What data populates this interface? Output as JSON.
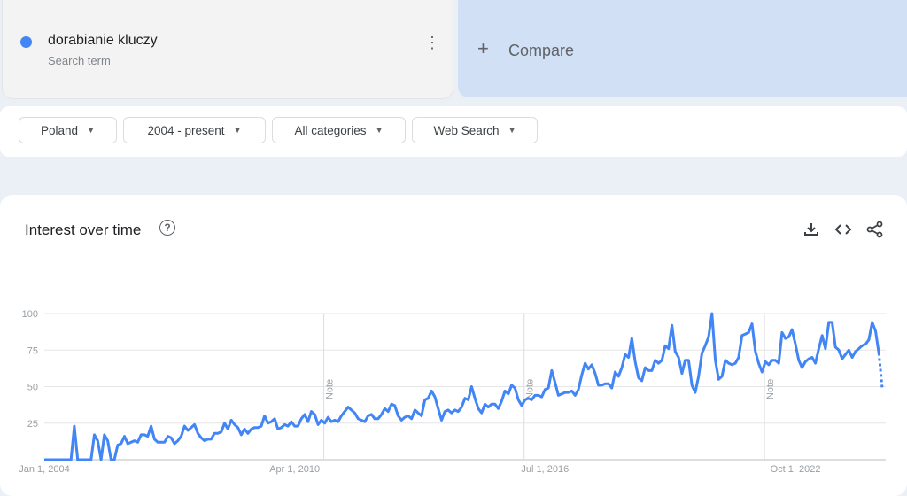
{
  "search_term": {
    "label": "dorabianie kluczy",
    "sub": "Search term",
    "color": "#4285f4"
  },
  "compare": {
    "label": "Compare"
  },
  "filters": [
    {
      "label": "Poland"
    },
    {
      "label": "2004 - present"
    },
    {
      "label": "All categories"
    },
    {
      "label": "Web Search"
    }
  ],
  "panel": {
    "title": "Interest over time",
    "help": "?",
    "icons": [
      "download-icon",
      "embed-code-icon",
      "share-icon"
    ]
  },
  "chart_data": {
    "type": "line",
    "title": "Interest over time",
    "series_color": "#4285f4",
    "ylim": [
      0,
      100
    ],
    "y_ticks": [
      "100",
      "75",
      "50",
      "25"
    ],
    "x_ticks": [
      "Jan 1, 2004",
      "Apr 1, 2010",
      "Jul 1, 2016",
      "Oct 1, 2022"
    ],
    "notes": [
      {
        "label": "Note",
        "date": "2011-01"
      },
      {
        "label": "Note",
        "date": "2016-01"
      },
      {
        "label": "Note",
        "date": "2022-01"
      }
    ],
    "grid": true,
    "last_point_partial": true,
    "x": [
      "2004-01",
      "2004-02",
      "2004-03",
      "2004-04",
      "2004-05",
      "2004-06",
      "2004-07",
      "2004-08",
      "2004-09",
      "2004-10",
      "2004-11",
      "2004-12",
      "2005-01",
      "2005-02",
      "2005-03",
      "2005-04",
      "2005-05",
      "2005-06",
      "2005-07",
      "2005-08",
      "2005-09",
      "2005-10",
      "2005-11",
      "2005-12",
      "2006-01",
      "2006-02",
      "2006-03",
      "2006-04",
      "2006-05",
      "2006-06",
      "2006-07",
      "2006-08",
      "2006-09",
      "2006-10",
      "2006-11",
      "2006-12",
      "2007-01",
      "2007-02",
      "2007-03",
      "2007-04",
      "2007-05",
      "2007-06",
      "2007-07",
      "2007-08",
      "2007-09",
      "2007-10",
      "2007-11",
      "2007-12",
      "2008-01",
      "2008-02",
      "2008-03",
      "2008-04",
      "2008-05",
      "2008-06",
      "2008-07",
      "2008-08",
      "2008-09",
      "2008-10",
      "2008-11",
      "2008-12",
      "2009-01",
      "2009-02",
      "2009-03",
      "2009-04",
      "2009-05",
      "2009-06",
      "2009-07",
      "2009-08",
      "2009-09",
      "2009-10",
      "2009-11",
      "2009-12",
      "2010-01",
      "2010-02",
      "2010-03",
      "2010-04",
      "2010-05",
      "2010-06",
      "2010-07",
      "2010-08",
      "2010-09",
      "2010-10",
      "2010-11",
      "2010-12",
      "2011-01",
      "2011-02",
      "2011-03",
      "2011-04",
      "2011-05",
      "2011-06",
      "2011-07",
      "2011-08",
      "2011-09",
      "2011-10",
      "2011-11",
      "2011-12",
      "2012-01",
      "2012-02",
      "2012-03",
      "2012-04",
      "2012-05",
      "2012-06",
      "2012-07",
      "2012-08",
      "2012-09",
      "2012-10",
      "2012-11",
      "2012-12",
      "2013-01",
      "2013-02",
      "2013-03",
      "2013-04",
      "2013-05",
      "2013-06",
      "2013-07",
      "2013-08",
      "2013-09",
      "2013-10",
      "2013-11",
      "2013-12",
      "2014-01",
      "2014-02",
      "2014-03",
      "2014-04",
      "2014-05",
      "2014-06",
      "2014-07",
      "2014-08",
      "2014-09",
      "2014-10",
      "2014-11",
      "2014-12",
      "2015-01",
      "2015-02",
      "2015-03",
      "2015-04",
      "2015-05",
      "2015-06",
      "2015-07",
      "2015-08",
      "2015-09",
      "2015-10",
      "2015-11",
      "2015-12",
      "2016-01",
      "2016-02",
      "2016-03",
      "2016-04",
      "2016-05",
      "2016-06",
      "2016-07",
      "2016-08",
      "2016-09",
      "2016-10",
      "2016-11",
      "2016-12",
      "2017-01",
      "2017-02",
      "2017-03",
      "2017-04",
      "2017-05",
      "2017-06",
      "2017-07",
      "2017-08",
      "2017-09",
      "2017-10",
      "2017-11",
      "2017-12",
      "2018-01",
      "2018-02",
      "2018-03",
      "2018-04",
      "2018-05",
      "2018-06",
      "2018-07",
      "2018-08",
      "2018-09",
      "2018-10",
      "2018-11",
      "2018-12",
      "2019-01",
      "2019-02",
      "2019-03",
      "2019-04",
      "2019-05",
      "2019-06",
      "2019-07",
      "2019-08",
      "2019-09",
      "2019-10",
      "2019-11",
      "2019-12",
      "2020-01",
      "2020-02",
      "2020-03",
      "2020-04",
      "2020-05",
      "2020-06",
      "2020-07",
      "2020-08",
      "2020-09",
      "2020-10",
      "2020-11",
      "2020-12",
      "2021-01",
      "2021-02",
      "2021-03",
      "2021-04",
      "2021-05",
      "2021-06",
      "2021-07",
      "2021-08",
      "2021-09",
      "2021-10",
      "2021-11",
      "2021-12",
      "2022-01",
      "2022-02",
      "2022-03",
      "2022-04",
      "2022-05",
      "2022-06",
      "2022-07",
      "2022-08",
      "2022-09",
      "2022-10",
      "2022-11",
      "2022-12",
      "2023-01",
      "2023-02",
      "2023-03",
      "2023-04",
      "2023-05",
      "2023-06",
      "2023-07",
      "2023-08",
      "2023-09",
      "2023-10",
      "2023-11",
      "2023-12",
      "2024-01",
      "2024-02",
      "2024-03",
      "2024-04",
      "2024-05",
      "2024-06",
      "2024-07",
      "2024-08",
      "2024-09",
      "2024-10",
      "2024-11",
      "2024-12"
    ],
    "series": [
      {
        "values": [
          0,
          0,
          0,
          0,
          0,
          0,
          0,
          0,
          0,
          23,
          0,
          0,
          0,
          0,
          0,
          17,
          13,
          0,
          17,
          13,
          0,
          0,
          10,
          11,
          16,
          11,
          12,
          13,
          12,
          17,
          17,
          16,
          23,
          14,
          12,
          12,
          12,
          16,
          15,
          11,
          13,
          16,
          23,
          20,
          22,
          24,
          18,
          15,
          13,
          14,
          14,
          18,
          18,
          19,
          25,
          21,
          27,
          24,
          22,
          17,
          21,
          18,
          21,
          22,
          22,
          23,
          30,
          25,
          26,
          28,
          21,
          22,
          24,
          23,
          26,
          23,
          23,
          28,
          31,
          26,
          33,
          31,
          24,
          27,
          25,
          29,
          26,
          27,
          26,
          30,
          33,
          36,
          34,
          32,
          28,
          27,
          26,
          30,
          31,
          28,
          28,
          31,
          35,
          33,
          38,
          37,
          30,
          27,
          29,
          30,
          28,
          34,
          32,
          30,
          41,
          42,
          47,
          43,
          35,
          27,
          33,
          34,
          32,
          34,
          33,
          36,
          42,
          41,
          50,
          42,
          35,
          32,
          38,
          36,
          38,
          38,
          35,
          40,
          47,
          45,
          51,
          49,
          41,
          37,
          41,
          42,
          41,
          44,
          44,
          43,
          48,
          49,
          61,
          53,
          44,
          45,
          46,
          46,
          47,
          44,
          48,
          58,
          66,
          62,
          65,
          59,
          51,
          51,
          52,
          52,
          49,
          60,
          57,
          63,
          72,
          70,
          83,
          67,
          56,
          54,
          63,
          61,
          61,
          68,
          66,
          68,
          78,
          76,
          92,
          74,
          70,
          59,
          68,
          68,
          51,
          46,
          57,
          73,
          78,
          84,
          100,
          68,
          55,
          57,
          68,
          66,
          65,
          66,
          70,
          85,
          86,
          87,
          93,
          74,
          66,
          60,
          67,
          65,
          68,
          68,
          66,
          87,
          83,
          84,
          89,
          79,
          68,
          63,
          67,
          69,
          70,
          66,
          76,
          85,
          76,
          94,
          94,
          77,
          75,
          69,
          72,
          75,
          70,
          74,
          76,
          78,
          79,
          82,
          94,
          88,
          73,
          49
        ]
      }
    ]
  }
}
